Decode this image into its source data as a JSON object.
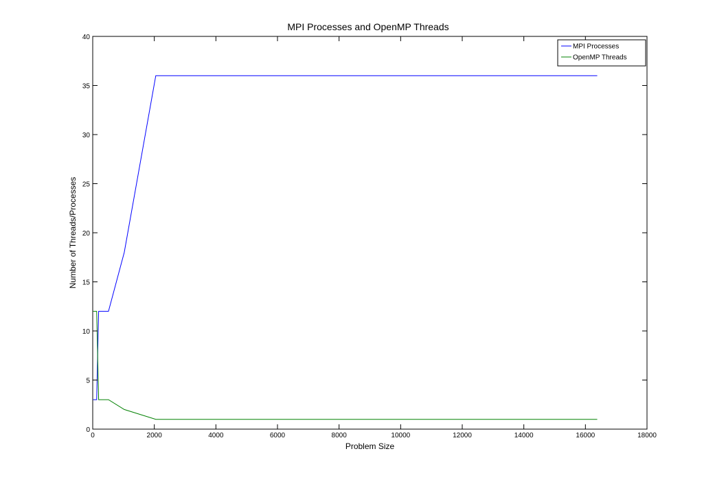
{
  "chart_data": {
    "type": "line",
    "title": "MPI Processes and OpenMP Threads",
    "xlabel": "Problem Size",
    "ylabel": "Number of Threads/Processes",
    "xlim": [
      0,
      18000
    ],
    "ylim": [
      0,
      40
    ],
    "xticks": [
      0,
      2000,
      4000,
      6000,
      8000,
      10000,
      12000,
      14000,
      16000,
      18000
    ],
    "yticks": [
      0,
      5,
      10,
      15,
      20,
      25,
      30,
      35,
      40
    ],
    "grid": false,
    "legend_position": "top-right",
    "series": [
      {
        "name": "MPI Processes",
        "color": "#0000ff",
        "x": [
          16,
          128,
          192,
          256,
          512,
          1024,
          2048,
          16384
        ],
        "y": [
          3,
          3,
          12,
          12,
          12,
          18,
          36,
          36
        ]
      },
      {
        "name": "OpenMP Threads",
        "color": "#008000",
        "x": [
          16,
          128,
          192,
          256,
          512,
          1024,
          2048,
          16384
        ],
        "y": [
          12,
          12,
          3,
          3,
          3,
          2,
          1,
          1
        ]
      }
    ]
  }
}
